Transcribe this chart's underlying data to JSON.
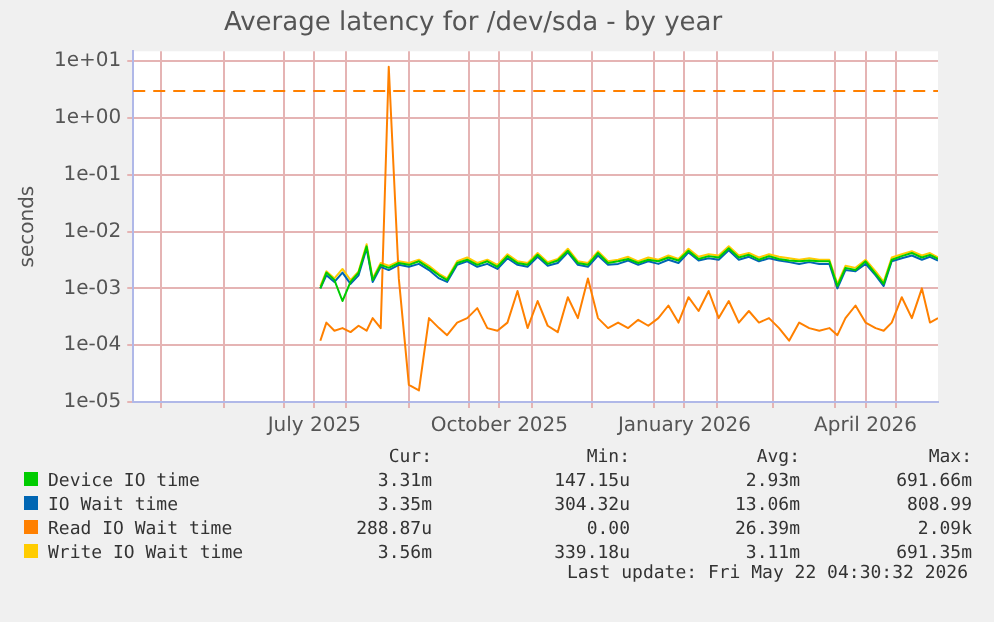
{
  "chart_data": {
    "type": "line",
    "title": "Average latency for /dev/sda - by year",
    "ylabel": "seconds",
    "log": "y",
    "grid": true,
    "legend": "bottom",
    "marker": "none",
    "line_style": "solid",
    "xlim": [
      "2025-04-17",
      "2026-05-22"
    ],
    "xticks": [
      {
        "value": "2025-05-01",
        "label": null
      },
      {
        "value": "2025-06-01",
        "label": null
      },
      {
        "value": "2025-07-01",
        "label": null
      },
      {
        "value": "2025-07-16",
        "label": "July 2025"
      },
      {
        "value": "2025-08-01",
        "label": null
      },
      {
        "value": "2025-09-01",
        "label": null
      },
      {
        "value": "2025-10-01",
        "label": null
      },
      {
        "value": "2025-10-16",
        "label": "October 2025"
      },
      {
        "value": "2025-11-01",
        "label": null
      },
      {
        "value": "2025-12-01",
        "label": null
      },
      {
        "value": "2026-01-01",
        "label": null
      },
      {
        "value": "2026-01-16",
        "label": "January 2026"
      },
      {
        "value": "2026-02-01",
        "label": null
      },
      {
        "value": "2026-03-01",
        "label": null
      },
      {
        "value": "2026-04-01",
        "label": null
      },
      {
        "value": "2026-04-16",
        "label": "April 2026"
      },
      {
        "value": "2026-05-01",
        "label": null
      }
    ],
    "ylim": [
      1e-05,
      15
    ],
    "yticks": [
      {
        "value": 1e-05,
        "label": "1e-05"
      },
      {
        "value": 0.0001,
        "label": "1e-04"
      },
      {
        "value": 0.001,
        "label": "1e-03"
      },
      {
        "value": 0.01,
        "label": "1e-02"
      },
      {
        "value": 0.1,
        "label": "1e-01"
      },
      {
        "value": 1,
        "label": "1e+00"
      },
      {
        "value": 10,
        "label": "1e+01"
      }
    ],
    "x": [
      "2025-07-19",
      "2025-07-22",
      "2025-07-26",
      "2025-07-30",
      "2025-08-03",
      "2025-08-07",
      "2025-08-11",
      "2025-08-14",
      "2025-08-18",
      "2025-08-22",
      "2025-08-27",
      "2025-09-01",
      "2025-09-06",
      "2025-09-11",
      "2025-09-16",
      "2025-09-20",
      "2025-09-25",
      "2025-09-30",
      "2025-10-05",
      "2025-10-10",
      "2025-10-15",
      "2025-10-20",
      "2025-10-25",
      "2025-10-30",
      "2025-11-04",
      "2025-11-09",
      "2025-11-14",
      "2025-11-19",
      "2025-11-24",
      "2025-11-29",
      "2025-12-04",
      "2025-12-09",
      "2025-12-14",
      "2025-12-19",
      "2025-12-24",
      "2025-12-29",
      "2026-01-03",
      "2026-01-08",
      "2026-01-13",
      "2026-01-18",
      "2026-01-23",
      "2026-01-28",
      "2026-02-02",
      "2026-02-07",
      "2026-02-12",
      "2026-02-17",
      "2026-02-22",
      "2026-02-27",
      "2026-03-04",
      "2026-03-09",
      "2026-03-14",
      "2026-03-19",
      "2026-03-24",
      "2026-03-29",
      "2026-04-02",
      "2026-04-06",
      "2026-04-11",
      "2026-04-16",
      "2026-04-21",
      "2026-04-25",
      "2026-04-29",
      "2026-05-04",
      "2026-05-09",
      "2026-05-14",
      "2026-05-18",
      "2026-05-22"
    ],
    "series": [
      {
        "name": "Device IO time",
        "color": "#00cc00",
        "values": [
          0.001,
          0.0019,
          0.0014,
          0.0006,
          0.0013,
          0.0019,
          0.0055,
          0.0014,
          0.0026,
          0.0023,
          0.0028,
          0.0026,
          0.003,
          0.0023,
          0.0017,
          0.0014,
          0.0028,
          0.0032,
          0.0026,
          0.003,
          0.0024,
          0.0037,
          0.0028,
          0.0026,
          0.0039,
          0.0027,
          0.0031,
          0.0046,
          0.0028,
          0.0026,
          0.0042,
          0.0028,
          0.003,
          0.0033,
          0.0028,
          0.0032,
          0.003,
          0.0035,
          0.0031,
          0.0046,
          0.0033,
          0.0037,
          0.0035,
          0.0051,
          0.0035,
          0.0039,
          0.0032,
          0.0037,
          0.0033,
          0.0031,
          0.003,
          0.0031,
          0.003,
          0.003,
          0.0011,
          0.0023,
          0.0021,
          0.003,
          0.0018,
          0.0012,
          0.0032,
          0.0037,
          0.0042,
          0.0035,
          0.0039,
          0.0033
        ]
      },
      {
        "name": "IO Wait time",
        "color": "#0066b3",
        "values": [
          0.001,
          0.0017,
          0.0013,
          0.0019,
          0.0012,
          0.0017,
          0.0051,
          0.0013,
          0.0024,
          0.0021,
          0.0026,
          0.0024,
          0.0027,
          0.0021,
          0.0015,
          0.0013,
          0.0026,
          0.003,
          0.0024,
          0.0027,
          0.0022,
          0.0034,
          0.0026,
          0.0024,
          0.0036,
          0.0025,
          0.0028,
          0.0043,
          0.0026,
          0.0024,
          0.0038,
          0.0026,
          0.0027,
          0.0031,
          0.0026,
          0.003,
          0.0027,
          0.0032,
          0.0028,
          0.0043,
          0.0031,
          0.0034,
          0.0032,
          0.0047,
          0.0032,
          0.0036,
          0.003,
          0.0034,
          0.0031,
          0.0029,
          0.0027,
          0.0029,
          0.0027,
          0.0027,
          0.001,
          0.0021,
          0.002,
          0.0027,
          0.0017,
          0.0011,
          0.003,
          0.0034,
          0.0038,
          0.0032,
          0.0036,
          0.0031
        ]
      },
      {
        "name": "Read IO Wait time",
        "color": "#ff8000",
        "values": [
          0.00012,
          0.00025,
          0.00018,
          0.0002,
          0.00017,
          0.00022,
          0.00018,
          0.0003,
          0.0002,
          8,
          0.0015,
          2e-05,
          1.6e-05,
          0.0003,
          0.0002,
          0.00015,
          0.00025,
          0.0003,
          0.00045,
          0.0002,
          0.00018,
          0.00025,
          0.0009,
          0.0002,
          0.0006,
          0.00022,
          0.00017,
          0.0007,
          0.0003,
          0.0015,
          0.0003,
          0.0002,
          0.00025,
          0.0002,
          0.00028,
          0.00022,
          0.0003,
          0.0005,
          0.00025,
          0.0007,
          0.0004,
          0.0009,
          0.0003,
          0.0006,
          0.00025,
          0.0004,
          0.00025,
          0.0003,
          0.0002,
          0.00012,
          0.00025,
          0.0002,
          0.00018,
          0.0002,
          0.00015,
          0.0003,
          0.0005,
          0.00025,
          0.0002,
          0.00018,
          0.00025,
          0.0007,
          0.0003,
          0.001,
          0.00025,
          0.0003
        ]
      },
      {
        "name": "Write IO Wait time",
        "color": "#ffcc00",
        "values": [
          0.0011,
          0.002,
          0.0015,
          0.0022,
          0.0014,
          0.002,
          0.006,
          0.0015,
          0.0028,
          0.0025,
          0.003,
          0.0028,
          0.0032,
          0.0025,
          0.0018,
          0.0015,
          0.003,
          0.0035,
          0.0028,
          0.0032,
          0.0026,
          0.004,
          0.003,
          0.0028,
          0.0042,
          0.0029,
          0.0033,
          0.005,
          0.003,
          0.0028,
          0.0045,
          0.003,
          0.0032,
          0.0036,
          0.003,
          0.0035,
          0.0032,
          0.0038,
          0.0033,
          0.005,
          0.0036,
          0.004,
          0.0038,
          0.0055,
          0.0038,
          0.0042,
          0.0035,
          0.004,
          0.0036,
          0.0034,
          0.0032,
          0.0034,
          0.0032,
          0.0032,
          0.0012,
          0.0025,
          0.0023,
          0.0032,
          0.002,
          0.0013,
          0.0035,
          0.004,
          0.0045,
          0.0038,
          0.0042,
          0.0035
        ]
      }
    ],
    "ref_lines": [
      {
        "axis": "y",
        "value": 3,
        "color": "#ff8000",
        "line_style": "dashed"
      }
    ],
    "annotations": [
      "Cur:",
      "Min:",
      "Avg:",
      "Max:",
      "3.31m",
      "147.15u",
      "2.93m",
      "691.66m",
      "3.35m",
      "304.32u",
      "13.06m",
      "808.99",
      "288.87u",
      "0.00",
      "26.39m",
      "2.09k",
      "3.56m",
      "339.18u",
      "3.11m",
      "691.35m",
      "Last update: Fri May 22 04:30:32 2026"
    ]
  }
}
